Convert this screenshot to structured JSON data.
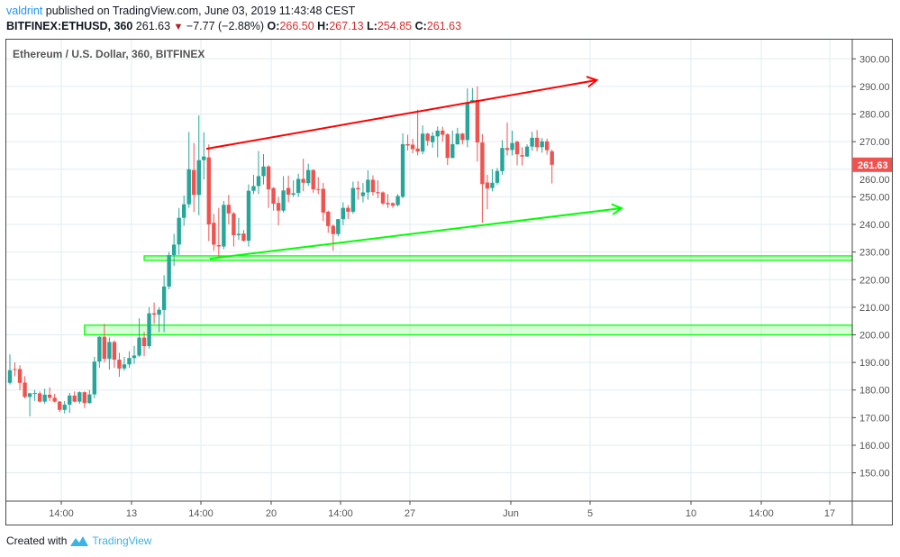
{
  "header": {
    "user": "valdrint",
    "published": "published on TradingView.com, June 03, 2019 11:43:48 CEST",
    "symbol": "BITFINEX:ETHUSD, 360",
    "last": "261.63",
    "change": "−7.77 (−2.88%)",
    "o_label": "O:",
    "o": "266.50",
    "h_label": "H:",
    "h": "267.13",
    "l_label": "L:",
    "l": "254.85",
    "c_label": "C:",
    "c": "261.63"
  },
  "legend": "Ethereum / U.S. Dollar, 360, BITFINEX",
  "footer": {
    "created": "Created with",
    "brand": "TradingView"
  },
  "colors": {
    "up": "#26a69a",
    "down": "#ef5350",
    "resistance": "#ff0000",
    "support": "#00ff00",
    "grid": "#e1ecf2",
    "price_tag": "#ef5350"
  },
  "chart_data": {
    "type": "candlestick",
    "title": "Ethereum / U.S. Dollar, 360, BITFINEX",
    "ylim": [
      140,
      305
    ],
    "yticks": [
      "300.00",
      "290.00",
      "280.00",
      "270.00",
      "260.00",
      "250.00",
      "240.00",
      "230.00",
      "220.00",
      "210.00",
      "200.00",
      "190.00",
      "180.00",
      "170.00",
      "160.00",
      "150.00"
    ],
    "xticks": [
      "14:00",
      "13",
      "14:00",
      "20",
      "14:00",
      "27",
      "Jun",
      "5",
      "10",
      "14:00",
      "17"
    ],
    "last_price_label": "261.63",
    "grid": true,
    "ohlc": [
      [
        182.6,
        192.9,
        182,
        187.2
      ],
      [
        187.6,
        190,
        185,
        187.3
      ],
      [
        187.6,
        189,
        180,
        182.6
      ],
      [
        182.7,
        185,
        177,
        177.5
      ],
      [
        177.5,
        179,
        170.5,
        178.8
      ],
      [
        178.8,
        180,
        176,
        178.9
      ],
      [
        178.8,
        179.5,
        175.5,
        175.8
      ],
      [
        175.8,
        180.5,
        175,
        178.3
      ],
      [
        178.3,
        181,
        176,
        177.2
      ],
      [
        177.2,
        178.6,
        175.5,
        175.8
      ],
      [
        175.8,
        176,
        172,
        172.8
      ],
      [
        172.8,
        176,
        171.5,
        174.7
      ],
      [
        174.7,
        179,
        171.7,
        178
      ],
      [
        178,
        179.5,
        175.5,
        175.8
      ],
      [
        175.8,
        179.5,
        175,
        179.2
      ],
      [
        179.2,
        179.5,
        173.5,
        175.3
      ],
      [
        175.3,
        180,
        175,
        178.4
      ],
      [
        178.4,
        192,
        177,
        190.3
      ],
      [
        190.3,
        199.5,
        188,
        199.3
      ],
      [
        199.3,
        204,
        190,
        191.3
      ],
      [
        191.3,
        199,
        187.4,
        197.4
      ],
      [
        197.4,
        198,
        188,
        191
      ],
      [
        191,
        193.5,
        184.8,
        187.8
      ],
      [
        187.8,
        192,
        187,
        189.3
      ],
      [
        189.3,
        194,
        188,
        191.6
      ],
      [
        191.6,
        196,
        189.5,
        192.5
      ],
      [
        192.5,
        206,
        192,
        199
      ],
      [
        199,
        201,
        192.3,
        195.9
      ],
      [
        195.9,
        210,
        195,
        207.8
      ],
      [
        207.8,
        211.7,
        204,
        207.3
      ],
      [
        207.3,
        210,
        201,
        209.1
      ],
      [
        209,
        221.6,
        201,
        217.5
      ],
      [
        217.5,
        230,
        216.5,
        228.9
      ],
      [
        228.9,
        236.6,
        225,
        232.7
      ],
      [
        232.7,
        246,
        229,
        242.4
      ],
      [
        242.4,
        250.5,
        239.5,
        247.3
      ],
      [
        247.3,
        273.5,
        246,
        260
      ],
      [
        259.7,
        269.5,
        244.5,
        250.7
      ],
      [
        250.7,
        279.5,
        243.3,
        263.3
      ],
      [
        263.3,
        273.4,
        256.3,
        264.6
      ],
      [
        264.3,
        269,
        234,
        240
      ],
      [
        240.6,
        243.8,
        230.5,
        232.7
      ],
      [
        232.5,
        246,
        228,
        232
      ],
      [
        232,
        248.5,
        231,
        247.1
      ],
      [
        247.1,
        250.7,
        240,
        244
      ],
      [
        244,
        244.5,
        232,
        236.1
      ],
      [
        236.1,
        242.4,
        234.4,
        236.6
      ],
      [
        236.7,
        238,
        233.8,
        234.1
      ],
      [
        234.1,
        254.5,
        232,
        252.2
      ],
      [
        252.2,
        258,
        251,
        253.9
      ],
      [
        253.9,
        266.6,
        251,
        257.5
      ],
      [
        257.5,
        265.5,
        254.5,
        261
      ],
      [
        261,
        261.5,
        246,
        252.7
      ],
      [
        253.2,
        253.5,
        245,
        247.5
      ],
      [
        247.8,
        250,
        239.7,
        245
      ],
      [
        245,
        257.5,
        244.3,
        252.3
      ],
      [
        253.2,
        257.7,
        248,
        250.8
      ],
      [
        250.8,
        256,
        250,
        251.3
      ],
      [
        251.4,
        258.4,
        250,
        256.5
      ],
      [
        256.5,
        263.8,
        252,
        255.1
      ],
      [
        255,
        262,
        254,
        259.7
      ],
      [
        259.7,
        260,
        251.5,
        252.7
      ],
      [
        252.8,
        257.2,
        251,
        252.5
      ],
      [
        252.9,
        255,
        241.2,
        244.3
      ],
      [
        244.6,
        245,
        237,
        239.4
      ],
      [
        239.5,
        240,
        230.5,
        236.5
      ],
      [
        236.5,
        242,
        235.7,
        241.9
      ],
      [
        241.9,
        248,
        239.7,
        246
      ],
      [
        246,
        247,
        242,
        244.6
      ],
      [
        244.6,
        255.5,
        243.9,
        253.2
      ],
      [
        253.2,
        255.7,
        249,
        252.7
      ],
      [
        250.3,
        255,
        248,
        251.6
      ],
      [
        251.6,
        259.6,
        249,
        256.2
      ],
      [
        256.2,
        257.8,
        250.5,
        251.7
      ],
      [
        251.7,
        256,
        249.5,
        251.3
      ],
      [
        251.6,
        252,
        247,
        247.6
      ],
      [
        247.8,
        251,
        246,
        247.3
      ],
      [
        247.7,
        248,
        246,
        246.8
      ],
      [
        247,
        251,
        246.5,
        250.3
      ],
      [
        250,
        273,
        249.5,
        269.1
      ],
      [
        269.1,
        272.5,
        266.8,
        268.6
      ],
      [
        268.9,
        271,
        265.8,
        267.3
      ],
      [
        267.5,
        281.6,
        265,
        266.4
      ],
      [
        266.4,
        275.9,
        265.4,
        272.9
      ],
      [
        272.9,
        273.2,
        268.5,
        270.3
      ],
      [
        269.8,
        273.5,
        267.8,
        272.1
      ],
      [
        271.9,
        275.5,
        264.3,
        274
      ],
      [
        274,
        275.4,
        270,
        272.5
      ],
      [
        272.7,
        273,
        261.5,
        264.1
      ],
      [
        264.1,
        274,
        264,
        269.1
      ],
      [
        269,
        275,
        269,
        272.9
      ],
      [
        272.9,
        273.2,
        269,
        270.6
      ],
      [
        270.6,
        289.3,
        268,
        284.2
      ],
      [
        284.2,
        289.4,
        284,
        285.1
      ],
      [
        285.1,
        290,
        262.8,
        269.7
      ],
      [
        269.7,
        272.8,
        240.6,
        254.6
      ],
      [
        255.2,
        258,
        245.5,
        253
      ],
      [
        253.2,
        260,
        252,
        255.1
      ],
      [
        255.1,
        260.5,
        254.4,
        259.4
      ],
      [
        259.3,
        270.5,
        258,
        267.7
      ],
      [
        267.7,
        276.9,
        265,
        267
      ],
      [
        267,
        274,
        265,
        269.5
      ],
      [
        270,
        270.3,
        261.4,
        265.4
      ],
      [
        265.1,
        268,
        261.4,
        264.6
      ],
      [
        264.6,
        269,
        264.5,
        268.2
      ],
      [
        268.2,
        273.6,
        266.7,
        271.4
      ],
      [
        271.4,
        274.2,
        266.5,
        268
      ],
      [
        268,
        271.3,
        266,
        270.1
      ],
      [
        270.1,
        271.1,
        265.3,
        266.9
      ],
      [
        266.5,
        267.13,
        254.85,
        261.63
      ]
    ],
    "annotations": [
      {
        "kind": "arrow",
        "color": "#ff0000",
        "from_bar": 39.5,
        "from_price": 267.4,
        "to_bar": 118,
        "to_price": 292.3
      },
      {
        "kind": "arrow",
        "color": "#00ff00",
        "from_bar": 40.2,
        "from_price": 227.6,
        "to_bar": 123,
        "to_price": 245.9
      },
      {
        "kind": "zone",
        "color": "#00ff00",
        "from_bar": 27,
        "price_low": 227,
        "price_high": 228.6
      },
      {
        "kind": "zone",
        "color": "#00ff00",
        "from_bar": 15,
        "price_low": 200,
        "price_high": 203.5
      }
    ]
  }
}
